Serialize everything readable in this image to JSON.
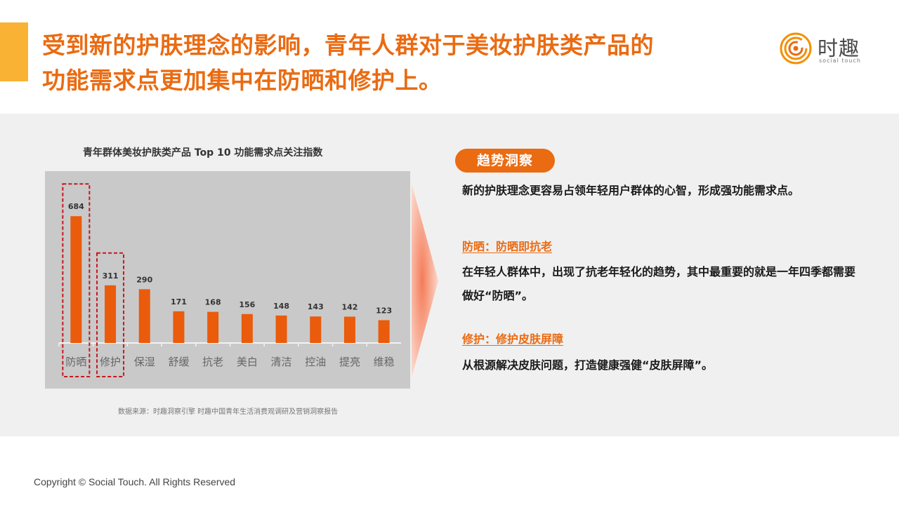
{
  "header": {
    "title_line1": "受到新的护肤理念的影响，青年人群对于美妆护肤类产品的",
    "title_line2": "功能需求点更加集中在防晒和修护上。",
    "logo_brand": "时趣",
    "logo_tagline": "social touch"
  },
  "chart_data": {
    "type": "bar",
    "title": "青年群体美妆护肤类产品 Top 10 功能需求点关注指数",
    "categories": [
      "防晒",
      "修护",
      "保湿",
      "舒缓",
      "抗老",
      "美白",
      "清洁",
      "控油",
      "提亮",
      "维稳"
    ],
    "values": [
      684,
      311,
      290,
      171,
      168,
      156,
      148,
      143,
      142,
      123
    ],
    "highlighted": [
      "防晒",
      "修护"
    ],
    "bar_color": "#ea5b0c",
    "highlight_box_color": "#c8161d",
    "xlabel": "",
    "ylabel": "",
    "ylim": [
      0,
      700
    ],
    "grid": false,
    "legend": "none"
  },
  "source_note": "数据来源：时趣洞察引擎 时趣中国青年生活消费观调研及营销洞察报告",
  "insight": {
    "pill_label": "趋势洞察",
    "intro": "新的护肤理念更容易占领年轻用户群体的心智，形成强功能需求点。",
    "sunscreen_heading": "防晒：防晒即抗老",
    "sunscreen_body": "在年轻人群体中，出现了抗老年轻化的趋势，其中最重要的就是一年四季都需要做好“防晒”。",
    "repair_heading": "修护：修护皮肤屏障",
    "repair_body": "从根源解决皮肤问题，打造健康强健“皮肤屏障”。"
  },
  "footer": {
    "copyright": "Copyright © Social Touch. All Rights Reserved"
  },
  "colors": {
    "accent_orange": "#ea6b12",
    "accent_yellow": "#f9b233",
    "band_gray": "#f0f0f0",
    "chart_bg": "#c9c9c9"
  }
}
